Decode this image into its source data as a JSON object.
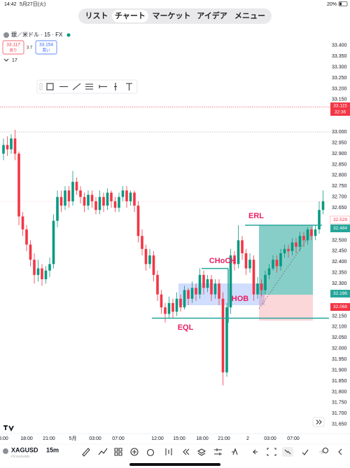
{
  "status_bar": {
    "time": "14:42",
    "date": "5月27日(火)",
    "battery": "20%"
  },
  "tabs": [
    "リスト",
    "チャート",
    "マーケット",
    "アイデア",
    "メニュー"
  ],
  "symbol_header": {
    "name": "銀／米ドル · 15 · FX",
    "sell_price": "33.117",
    "sell_label": "売り",
    "spread": "3.7",
    "buy_price": "33.154",
    "buy_label": "買い",
    "indicator_count": "17"
  },
  "chart_data": {
    "type": "candlestick",
    "open": [
      32.9,
      32.94,
      32.92,
      32.97,
      32.9,
      32.61,
      32.55,
      32.48,
      32.41,
      32.34,
      32.37,
      32.32,
      32.36,
      32.39,
      32.59,
      32.7,
      32.66,
      32.73,
      32.68,
      32.77,
      32.73,
      32.7,
      32.66,
      32.71,
      32.68,
      32.64,
      32.7,
      32.66,
      32.72,
      32.68,
      32.65,
      32.7,
      32.73,
      32.68,
      32.72,
      32.66,
      32.52,
      32.46,
      32.39,
      32.43,
      32.34,
      32.25,
      32.19,
      32.16,
      32.21,
      32.17,
      32.23,
      32.19,
      32.27,
      32.23,
      32.28,
      32.25,
      32.34,
      32.28,
      32.32,
      32.25,
      32.3,
      32.23,
      31.89,
      32.19,
      32.43,
      32.39,
      32.5,
      32.44,
      32.37,
      32.41,
      32.25,
      32.3,
      32.27,
      32.34,
      32.37,
      32.41,
      32.38,
      32.44,
      32.46,
      32.45,
      32.49,
      32.47,
      32.52,
      32.5,
      32.55,
      32.52,
      32.55,
      32.64
    ],
    "high": [
      32.97,
      32.98,
      32.99,
      33.01,
      32.91,
      32.63,
      32.57,
      32.5,
      32.44,
      32.41,
      32.39,
      32.38,
      32.42,
      32.62,
      32.73,
      32.73,
      32.75,
      32.75,
      32.82,
      32.79,
      32.75,
      32.72,
      32.73,
      32.73,
      32.7,
      32.73,
      32.72,
      32.74,
      32.73,
      32.7,
      32.72,
      32.75,
      32.75,
      32.73,
      32.73,
      32.68,
      32.55,
      32.48,
      32.46,
      32.45,
      32.36,
      32.27,
      32.21,
      32.24,
      32.23,
      32.26,
      32.25,
      32.29,
      32.28,
      32.31,
      32.3,
      32.37,
      32.36,
      32.34,
      32.34,
      32.32,
      32.32,
      32.26,
      32.21,
      32.46,
      32.45,
      32.57,
      32.52,
      32.46,
      32.44,
      32.43,
      32.33,
      32.32,
      32.36,
      32.39,
      32.43,
      32.43,
      32.46,
      32.48,
      32.48,
      32.51,
      32.51,
      32.54,
      32.54,
      32.56,
      32.56,
      32.57,
      32.68,
      32.73
    ],
    "low": [
      32.87,
      32.89,
      32.9,
      32.87,
      32.57,
      32.52,
      32.45,
      32.38,
      32.3,
      32.31,
      32.29,
      32.3,
      32.33,
      32.37,
      32.56,
      32.63,
      32.64,
      32.65,
      32.66,
      32.71,
      32.67,
      32.63,
      32.64,
      32.65,
      32.62,
      32.62,
      32.63,
      32.64,
      32.65,
      32.63,
      32.63,
      32.68,
      32.65,
      32.66,
      32.63,
      32.49,
      32.43,
      32.36,
      32.37,
      32.31,
      32.22,
      32.16,
      32.12,
      32.14,
      32.14,
      32.15,
      32.17,
      32.18,
      32.2,
      32.21,
      32.22,
      32.23,
      32.25,
      32.26,
      32.22,
      32.23,
      32.2,
      31.83,
      31.87,
      32.16,
      32.36,
      32.37,
      32.41,
      32.34,
      32.35,
      32.22,
      32.23,
      32.24,
      32.25,
      32.32,
      32.36,
      32.35,
      32.36,
      32.42,
      32.42,
      32.43,
      32.44,
      32.45,
      32.47,
      32.48,
      32.5,
      32.5,
      32.53,
      32.62
    ],
    "close": [
      32.94,
      32.92,
      32.97,
      32.9,
      32.61,
      32.55,
      32.48,
      32.41,
      32.34,
      32.37,
      32.32,
      32.36,
      32.39,
      32.59,
      32.7,
      32.66,
      32.73,
      32.68,
      32.77,
      32.73,
      32.7,
      32.66,
      32.71,
      32.68,
      32.64,
      32.7,
      32.66,
      32.72,
      32.68,
      32.65,
      32.7,
      32.73,
      32.68,
      32.72,
      32.66,
      32.52,
      32.46,
      32.39,
      32.43,
      32.34,
      32.25,
      32.19,
      32.16,
      32.21,
      32.17,
      32.23,
      32.19,
      32.27,
      32.23,
      32.28,
      32.25,
      32.34,
      32.28,
      32.32,
      32.25,
      32.3,
      32.23,
      31.89,
      32.19,
      32.43,
      32.39,
      32.5,
      32.44,
      32.37,
      32.41,
      32.25,
      32.3,
      32.27,
      32.34,
      32.37,
      32.41,
      32.38,
      32.44,
      32.46,
      32.45,
      32.49,
      32.47,
      32.52,
      32.5,
      32.55,
      32.52,
      32.55,
      32.64,
      32.68
    ],
    "up_color": "#089981",
    "down_color": "#f23645",
    "ylim": [
      31.62,
      33.48
    ],
    "yticks": [
      {
        "value": 33.4,
        "label": "33.400"
      },
      {
        "value": 33.35,
        "label": "33.350"
      },
      {
        "value": 33.3,
        "label": "33.300"
      },
      {
        "value": 33.25,
        "label": "33.250"
      },
      {
        "value": 33.2,
        "label": "33.200"
      },
      {
        "value": 33.15,
        "label": "33.150"
      },
      {
        "value": 33.0,
        "label": "33.000"
      },
      {
        "value": 32.95,
        "label": "32.950"
      },
      {
        "value": 32.9,
        "label": "32.900"
      },
      {
        "value": 32.85,
        "label": "32.850"
      },
      {
        "value": 32.8,
        "label": "32.800"
      },
      {
        "value": 32.75,
        "label": "32.750"
      },
      {
        "value": 32.7,
        "label": "32.700"
      },
      {
        "value": 32.65,
        "label": "32.650"
      },
      {
        "value": 32.6,
        "label": "32.600"
      },
      {
        "value": 32.5,
        "label": "32.500"
      },
      {
        "value": 32.45,
        "label": "32.450"
      },
      {
        "value": 32.4,
        "label": "32.400"
      },
      {
        "value": 32.35,
        "label": "32.350"
      },
      {
        "value": 32.3,
        "label": "32.300"
      },
      {
        "value": 32.15,
        "label": "32.150"
      },
      {
        "value": 32.1,
        "label": "32.100"
      },
      {
        "value": 32.05,
        "label": "32.050"
      },
      {
        "value": 32.0,
        "label": "32.000"
      },
      {
        "value": 31.95,
        "label": "31.950"
      },
      {
        "value": 31.9,
        "label": "31.900"
      },
      {
        "value": 31.85,
        "label": "31.850"
      },
      {
        "value": 31.8,
        "label": "31.800"
      },
      {
        "value": 31.75,
        "label": "31.750"
      },
      {
        "value": 31.7,
        "label": "31.700"
      },
      {
        "value": 31.65,
        "label": "31.650"
      }
    ],
    "xtick_labels": [
      "5:00",
      "18:00",
      "21:00",
      "5月",
      "03:00",
      "07:00",
      "12:00",
      "15:00",
      "18:00",
      "21:00",
      "2",
      "03:00",
      "07:00"
    ]
  },
  "annotations": {
    "eql": "EQL",
    "choch": "CHoCH",
    "hob": "HOB",
    "erl": "ERL"
  },
  "price_labels": {
    "alert_price": "33.115",
    "alert_time": "32:36",
    "current": "32.529",
    "target": "32.484",
    "entry": "32.196",
    "stop": "32.068"
  },
  "bottom_toolbar": {
    "symbol": "XAGUSD",
    "exchange": "FX:XAGUSD",
    "interval": "15m"
  }
}
